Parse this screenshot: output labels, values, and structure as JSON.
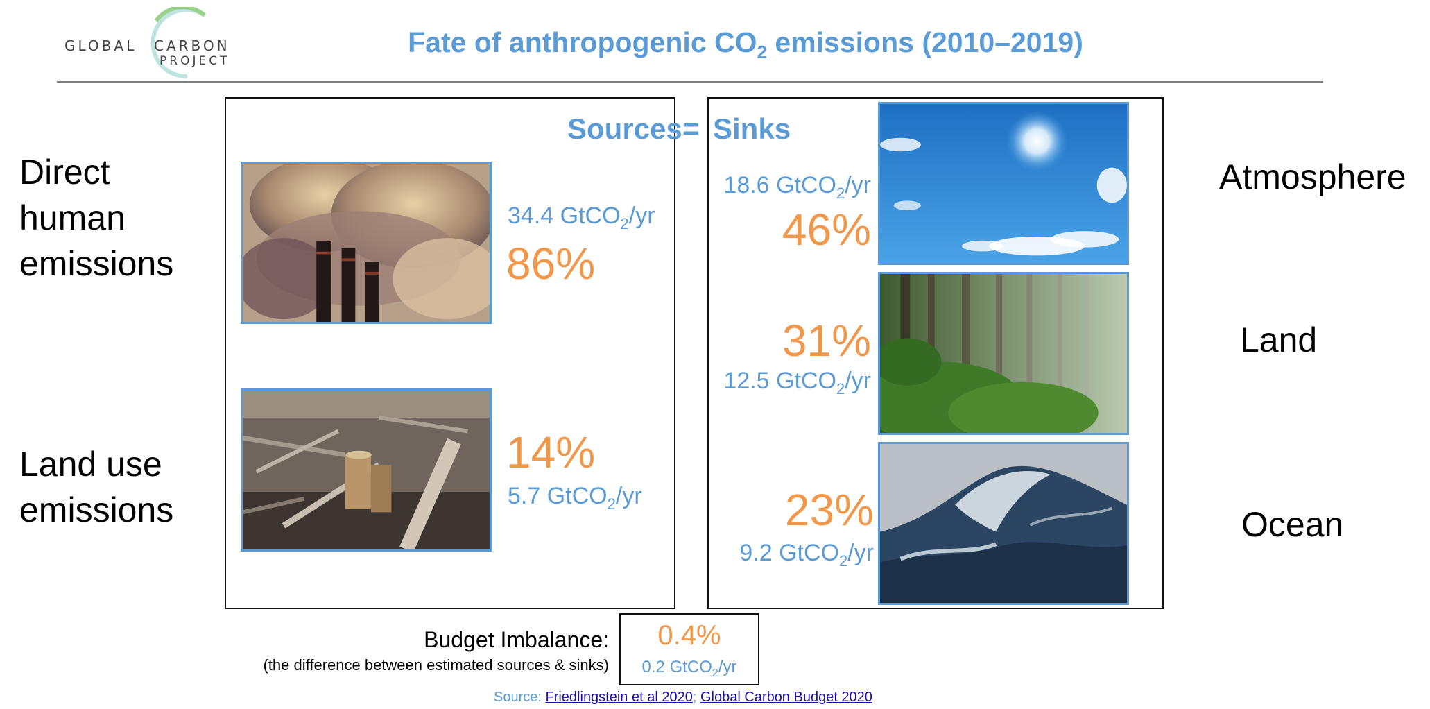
{
  "logo": {
    "word1": "GLOBAL",
    "word2": "CARBON",
    "word3": "PROJECT"
  },
  "title": {
    "prefix": "Fate of anthropogenic CO",
    "sub": "2",
    "suffix": " emissions (2010–2019)"
  },
  "header": {
    "sources": "Sources",
    "equals": "=",
    "sinks": "Sinks"
  },
  "labels": {
    "direct": [
      "Direct",
      "human",
      "emissions"
    ],
    "landuse": [
      "Land use",
      "emissions"
    ],
    "atmosphere": "Atmosphere",
    "land": "Land",
    "ocean": "Ocean"
  },
  "unit": {
    "prefix": "GtCO",
    "sub": "2",
    "suffix": "/yr"
  },
  "sources": {
    "fossil": {
      "value": "34.4",
      "percent": "86%"
    },
    "landuse": {
      "value": "5.7",
      "percent": "14%"
    }
  },
  "sinks": {
    "atmosphere": {
      "value": "18.6",
      "percent": "46%"
    },
    "land": {
      "value": "12.5",
      "percent": "31%"
    },
    "ocean": {
      "value": "9.2",
      "percent": "23%"
    }
  },
  "imbalance": {
    "label": "Budget Imbalance:",
    "note": "(the difference between estimated sources & sinks)",
    "percent": "0.4%",
    "value": "0.2"
  },
  "source_line": {
    "prefix": "Source: ",
    "link1": "Friedlingstein et al 2020",
    "sep": ";",
    "link2": "Global Carbon Budget 2020"
  },
  "colors": {
    "blue": "#5b9bd5",
    "orange": "#f0974a"
  },
  "icons": [
    "smokestack-photo",
    "deforestation-photo",
    "sky-photo",
    "forest-photo",
    "ocean-wave-photo"
  ]
}
